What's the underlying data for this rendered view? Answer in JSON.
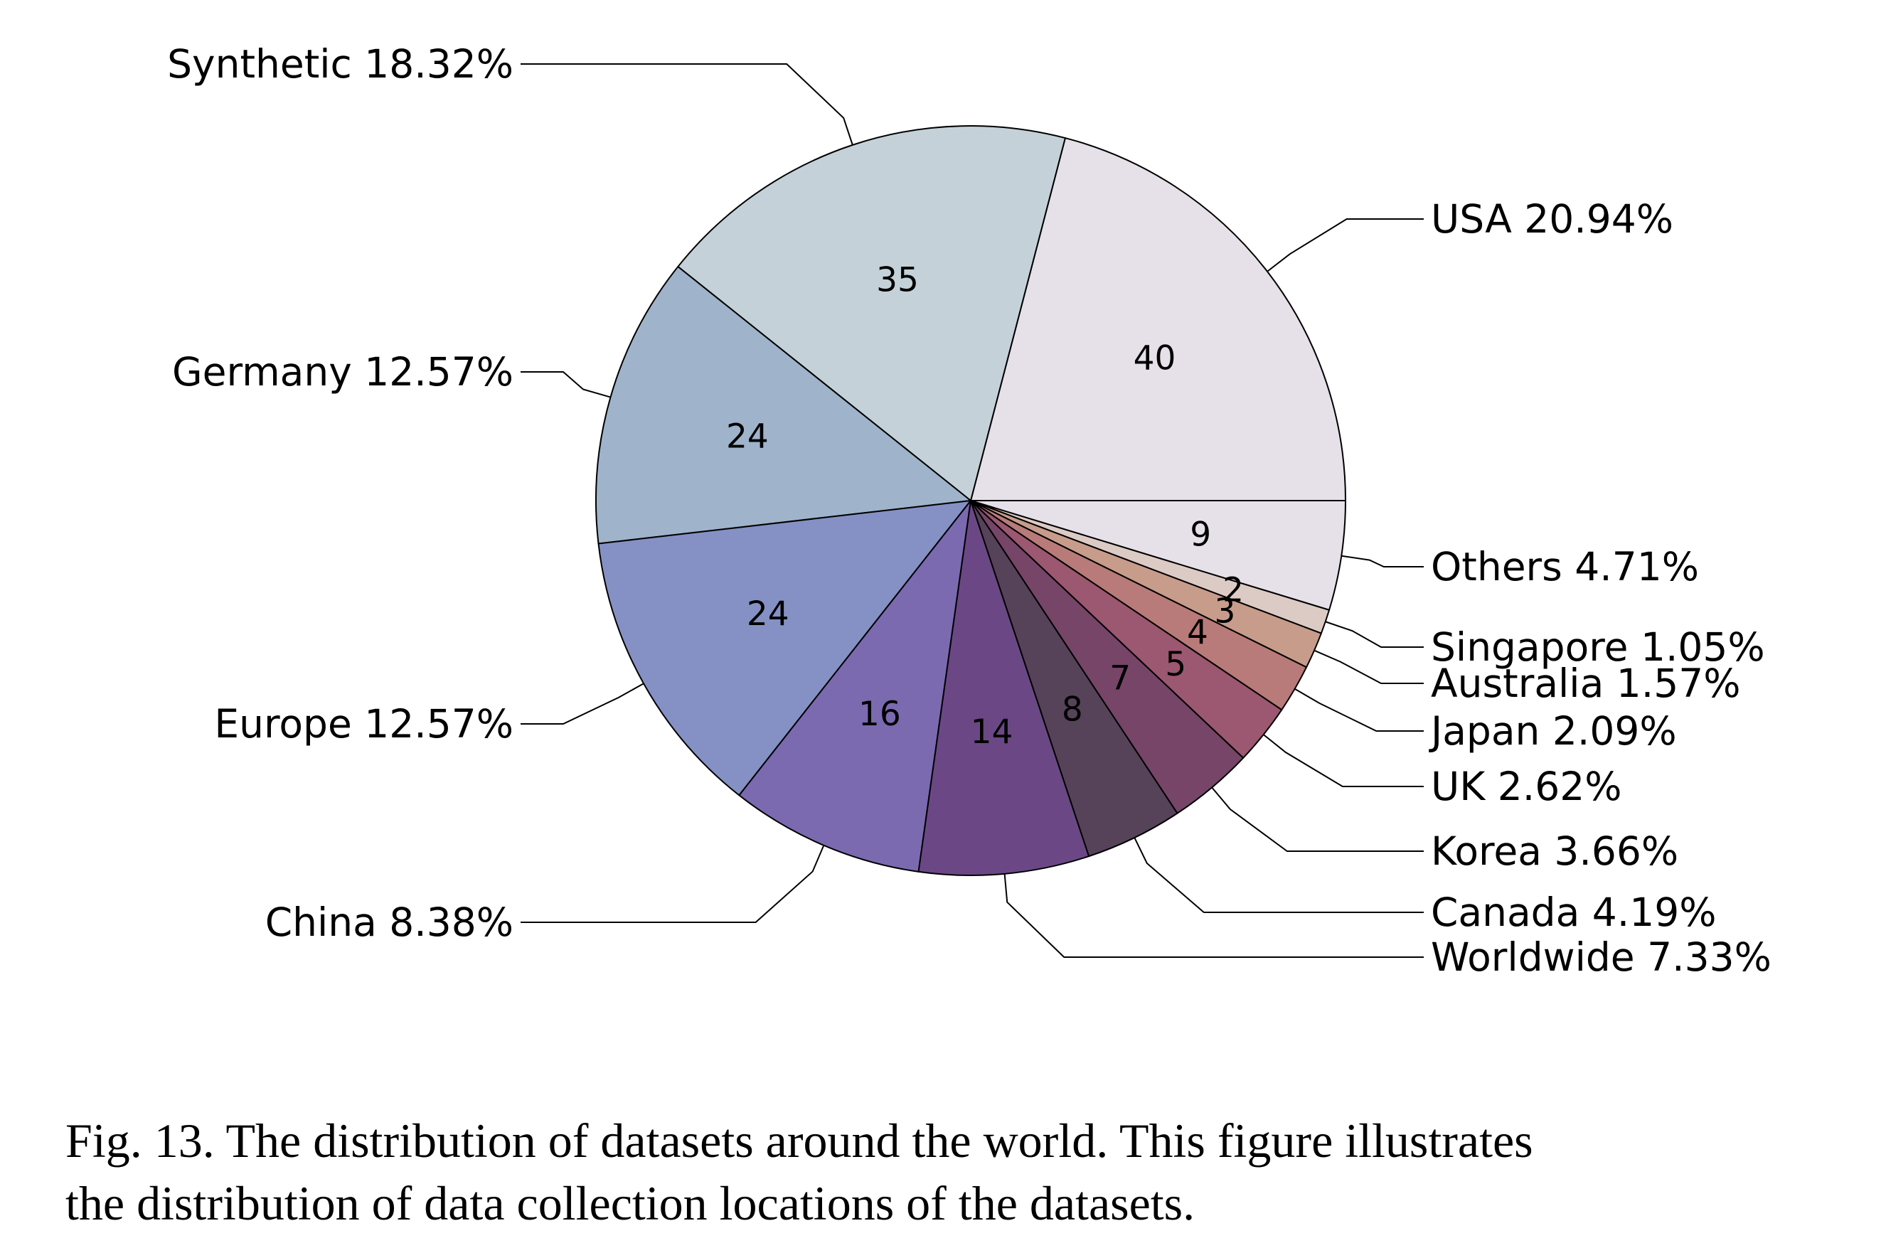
{
  "chart_data": {
    "type": "pie",
    "title": "",
    "start_angle_deg": 0,
    "direction": "counterclockwise",
    "slices": [
      {
        "name": "USA",
        "value": 40,
        "percent_label": "USA 20.94%",
        "color": "#e6e1e8"
      },
      {
        "name": "Synthetic",
        "value": 35,
        "percent_label": "Synthetic 18.32%",
        "color": "#c5d1d8"
      },
      {
        "name": "Germany",
        "value": 24,
        "percent_label": "Germany 12.57%",
        "color": "#9fb3cb"
      },
      {
        "name": "Europe",
        "value": 24,
        "percent_label": "Europe 12.57%",
        "color": "#8591c4"
      },
      {
        "name": "China",
        "value": 16,
        "percent_label": "China 8.38%",
        "color": "#7b6ab0"
      },
      {
        "name": "Worldwide",
        "value": 14,
        "percent_label": "Worldwide 7.33%",
        "color": "#6b4885"
      },
      {
        "name": "Canada",
        "value": 8,
        "percent_label": "Canada 4.19%",
        "color": "#56435a"
      },
      {
        "name": "Korea",
        "value": 7,
        "percent_label": "Korea 3.66%",
        "color": "#764568"
      },
      {
        "name": "UK",
        "value": 5,
        "percent_label": "UK 2.62%",
        "color": "#9b5870"
      },
      {
        "name": "Japan",
        "value": 4,
        "percent_label": "Japan 2.09%",
        "color": "#b87b79"
      },
      {
        "name": "Australia",
        "value": 3,
        "percent_label": "Australia 1.57%",
        "color": "#c79c8a"
      },
      {
        "name": "Singapore",
        "value": 2,
        "percent_label": "Singapore 1.05%",
        "color": "#dccbc5"
      },
      {
        "name": "Others",
        "value": 9,
        "percent_label": "Others 4.71%",
        "color": "#e6e1e8"
      }
    ]
  },
  "caption": {
    "line1": "Fig. 13.  The distribution of datasets around the world. This figure illustrates",
    "line2": "the distribution of data collection locations of the datasets."
  }
}
